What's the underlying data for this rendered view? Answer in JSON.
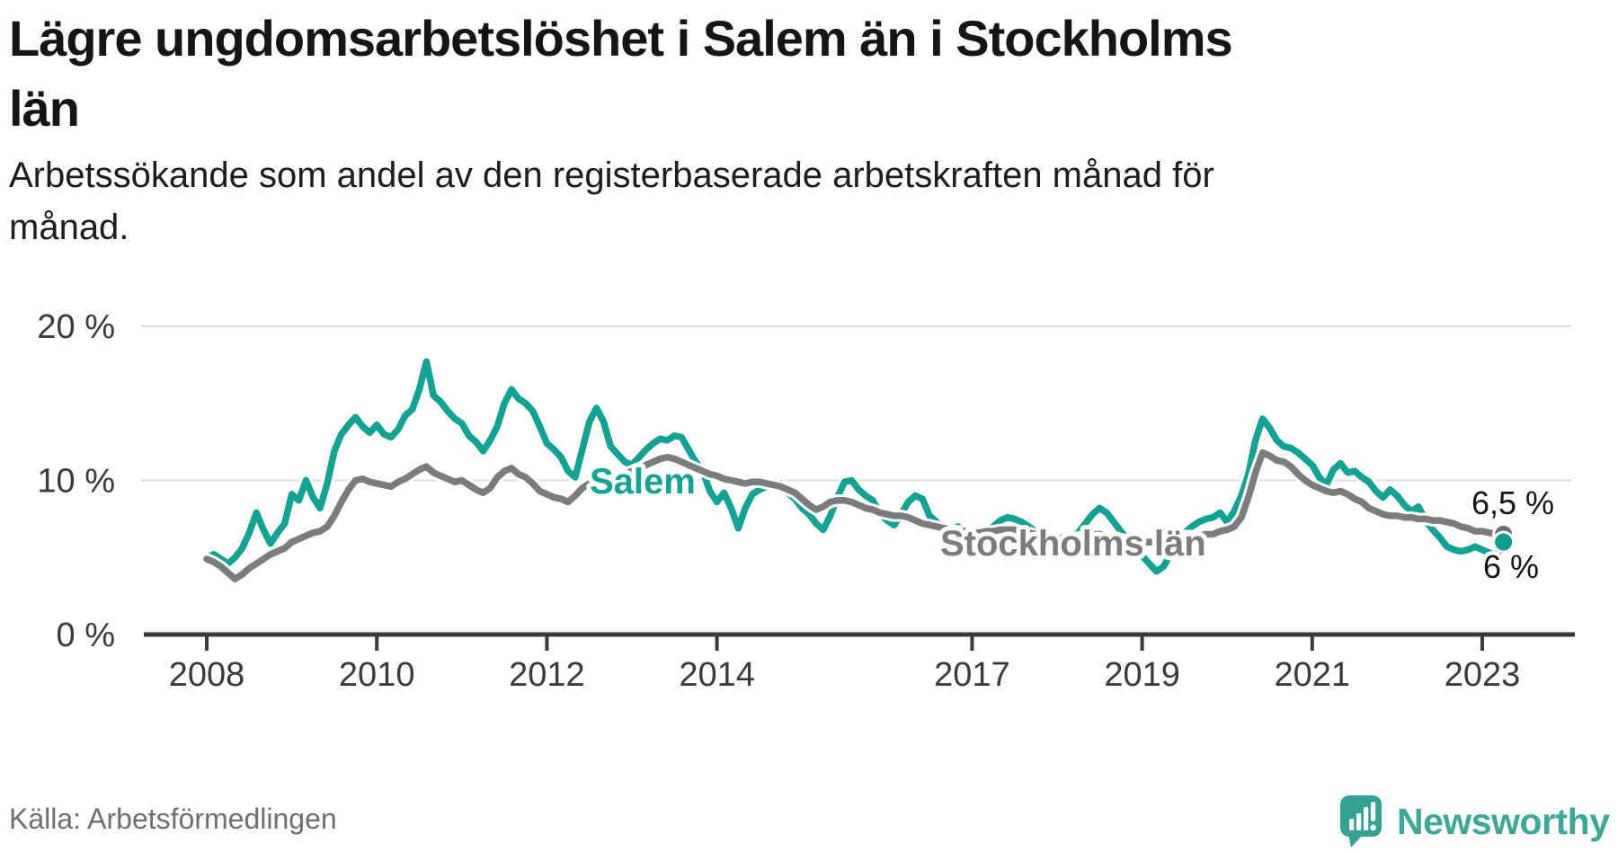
{
  "header": {
    "title_line1": "Lägre ungdomsarbetslöshet i Salem än i Stockholms",
    "title_line2": "län",
    "subtitle_line1": "Arbetssökande som andel av den registerbaserade arbetskraften månad för",
    "subtitle_line2": "månad."
  },
  "footer": {
    "source": "Källa: Arbetsförmedlingen",
    "brand": "Newsworthy"
  },
  "colors": {
    "salem_teal": "#13a294",
    "stockholm_gray": "#7c7c7c",
    "salem_dot": "#0d9c8b",
    "stockholm_dot": "#6e6e6e",
    "gridline": "#dcdcdc",
    "axis": "#3a3a3a",
    "text_dark": "#151515",
    "logo_teal": "#3ea795",
    "halo_white": "#ffffff"
  },
  "chart_data": {
    "type": "line",
    "title": "Lägre ungdomsarbetslöshet i Salem än i Stockholms län",
    "xlabel": "",
    "ylabel": "",
    "unit": "%",
    "x_start_year": 2008,
    "x_step_months": 1,
    "x_end_label": "2023-04",
    "ylim": [
      0,
      20.5
    ],
    "grid": "horizontal",
    "legend_position": "inline-labels",
    "x_ticks": [
      {
        "value": 2008,
        "label": "2008"
      },
      {
        "value": 2010,
        "label": "2010"
      },
      {
        "value": 2012,
        "label": "2012"
      },
      {
        "value": 2014,
        "label": "2014"
      },
      {
        "value": 2017,
        "label": "2017"
      },
      {
        "value": 2019,
        "label": "2019"
      },
      {
        "value": 2021,
        "label": "2021"
      },
      {
        "value": 2023,
        "label": "2023"
      }
    ],
    "y_ticks": [
      {
        "value": 0,
        "label": "0 %"
      },
      {
        "value": 10,
        "label": "10 %"
      },
      {
        "value": 20,
        "label": "20 %"
      }
    ],
    "series": [
      {
        "name": "Salem",
        "color": "#13a294",
        "dot_color": "#0d9c8b",
        "end_label": "6 %",
        "values": [
          5.0,
          5.2,
          4.9,
          4.6,
          5.0,
          5.6,
          6.6,
          7.9,
          6.8,
          5.9,
          6.6,
          7.2,
          9.1,
          8.7,
          10.0,
          8.9,
          8.2,
          9.8,
          11.9,
          13.0,
          13.6,
          14.1,
          13.5,
          13.1,
          13.6,
          13.0,
          12.8,
          13.3,
          14.2,
          14.6,
          15.9,
          17.7,
          15.5,
          15.1,
          14.5,
          14.0,
          13.7,
          12.9,
          12.5,
          11.9,
          12.6,
          13.5,
          15.0,
          15.9,
          15.3,
          15.0,
          14.5,
          13.5,
          12.4,
          12.0,
          11.5,
          10.6,
          10.2,
          12.0,
          13.8,
          14.7,
          13.8,
          12.2,
          11.7,
          11.2,
          11.0,
          11.5,
          12.0,
          12.4,
          12.7,
          12.6,
          12.9,
          12.8,
          12.0,
          11.2,
          10.6,
          9.3,
          8.6,
          9.2,
          8.2,
          6.9,
          8.2,
          9.1,
          9.4,
          9.6,
          9.7,
          9.8,
          9.2,
          8.8,
          8.2,
          7.8,
          7.2,
          6.8,
          7.7,
          8.9,
          9.9,
          10.0,
          9.4,
          9.0,
          8.7,
          7.8,
          7.4,
          7.1,
          7.8,
          8.6,
          9.0,
          8.8,
          7.7,
          7.3,
          6.6,
          6.9,
          7.0,
          6.7,
          6.3,
          5.9,
          6.4,
          7.0,
          7.4,
          7.6,
          7.5,
          7.3,
          7.0,
          6.7,
          6.4,
          6.1,
          5.9,
          5.7,
          6.1,
          6.6,
          7.2,
          7.8,
          8.2,
          7.9,
          7.3,
          6.7,
          6.1,
          5.6,
          5.1,
          4.6,
          4.1,
          4.4,
          5.2,
          6.0,
          6.6,
          7.0,
          7.3,
          7.5,
          7.6,
          7.9,
          7.3,
          8.0,
          9.0,
          10.4,
          12.6,
          14.0,
          13.4,
          12.6,
          12.2,
          12.1,
          11.8,
          11.4,
          11.0,
          10.2,
          9.7,
          10.7,
          11.1,
          10.5,
          10.6,
          10.2,
          9.9,
          9.3,
          8.9,
          9.4,
          9.0,
          8.4,
          8.0,
          8.3,
          7.4,
          6.8,
          6.3,
          5.7,
          5.5,
          5.4,
          5.5,
          5.7,
          5.5,
          5.3,
          5.1,
          6.0
        ]
      },
      {
        "name": "Stockholms län",
        "color": "#7c7c7c",
        "dot_color": "#6e6e6e",
        "end_label": "6,5 %",
        "values": [
          4.9,
          4.7,
          4.4,
          4.0,
          3.6,
          3.9,
          4.3,
          4.6,
          4.9,
          5.2,
          5.4,
          5.6,
          6.0,
          6.2,
          6.4,
          6.6,
          6.7,
          7.0,
          7.7,
          8.6,
          9.4,
          10.0,
          10.1,
          9.9,
          9.8,
          9.7,
          9.6,
          9.9,
          10.1,
          10.4,
          10.7,
          10.9,
          10.5,
          10.3,
          10.1,
          9.9,
          10.0,
          9.7,
          9.4,
          9.2,
          9.5,
          10.2,
          10.6,
          10.8,
          10.4,
          10.2,
          9.8,
          9.3,
          9.1,
          8.9,
          8.8,
          8.6,
          9.0,
          9.5,
          9.8,
          10.0,
          10.1,
          10.2,
          10.3,
          10.4,
          10.6,
          10.8,
          11.0,
          11.2,
          11.4,
          11.5,
          11.4,
          11.2,
          11.0,
          10.8,
          10.6,
          10.4,
          10.3,
          10.1,
          10.0,
          9.9,
          9.8,
          9.9,
          9.9,
          9.8,
          9.7,
          9.6,
          9.4,
          9.2,
          8.8,
          8.4,
          8.1,
          8.3,
          8.6,
          8.7,
          8.7,
          8.6,
          8.4,
          8.2,
          8.1,
          7.9,
          7.8,
          7.7,
          7.7,
          7.6,
          7.4,
          7.2,
          7.1,
          7.0,
          6.9,
          6.8,
          6.7,
          6.7,
          6.6,
          6.6,
          6.7,
          6.7,
          6.8,
          6.8,
          6.8,
          6.7,
          6.6,
          6.5,
          6.4,
          6.4,
          6.3,
          6.2,
          6.2,
          6.3,
          6.4,
          6.5,
          6.5,
          6.4,
          6.3,
          6.2,
          6.1,
          6.1,
          6.0,
          6.0,
          6.0,
          6.1,
          6.2,
          6.3,
          6.4,
          6.4,
          6.4,
          6.5,
          6.5,
          6.7,
          6.8,
          7.0,
          7.6,
          8.9,
          10.5,
          11.8,
          11.6,
          11.3,
          11.2,
          10.9,
          10.4,
          10.0,
          9.7,
          9.5,
          9.3,
          9.2,
          9.3,
          9.1,
          8.8,
          8.6,
          8.2,
          8.0,
          7.8,
          7.7,
          7.7,
          7.6,
          7.6,
          7.5,
          7.5,
          7.4,
          7.4,
          7.3,
          7.2,
          7.0,
          6.9,
          6.7,
          6.7,
          6.6,
          6.5,
          6.5
        ]
      }
    ]
  }
}
